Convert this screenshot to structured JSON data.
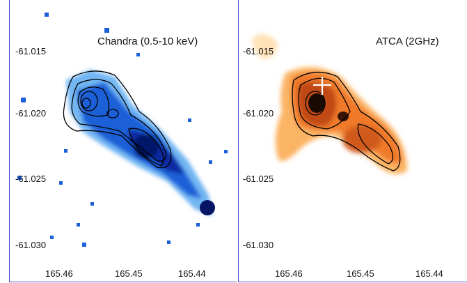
{
  "panels": [
    {
      "id": "chandra",
      "title": "Chandra (0.5-10 keV)",
      "ytick_labels": [
        "-61.015",
        "-61.020",
        "-61.025",
        "-61.030"
      ],
      "xtick_labels": [
        "165.46",
        "165.45",
        "165.44"
      ],
      "colormap": [
        "#bfe2ff",
        "#5aa9f0",
        "#1a60d8",
        "#0a2aa0",
        "#061466"
      ]
    },
    {
      "id": "atca",
      "title": "ATCA (2GHz)",
      "ytick_labels": [
        "-61.015",
        "-61.020",
        "-61.025",
        "-61.030"
      ],
      "xtick_labels": [
        "165.46",
        "165.45",
        "165.44"
      ],
      "colormap": [
        "#ffe2b8",
        "#fbb464",
        "#f07a2a",
        "#c04a14",
        "#1a0a04"
      ]
    }
  ],
  "contour_color": "#000000",
  "marker": "white-cross"
}
